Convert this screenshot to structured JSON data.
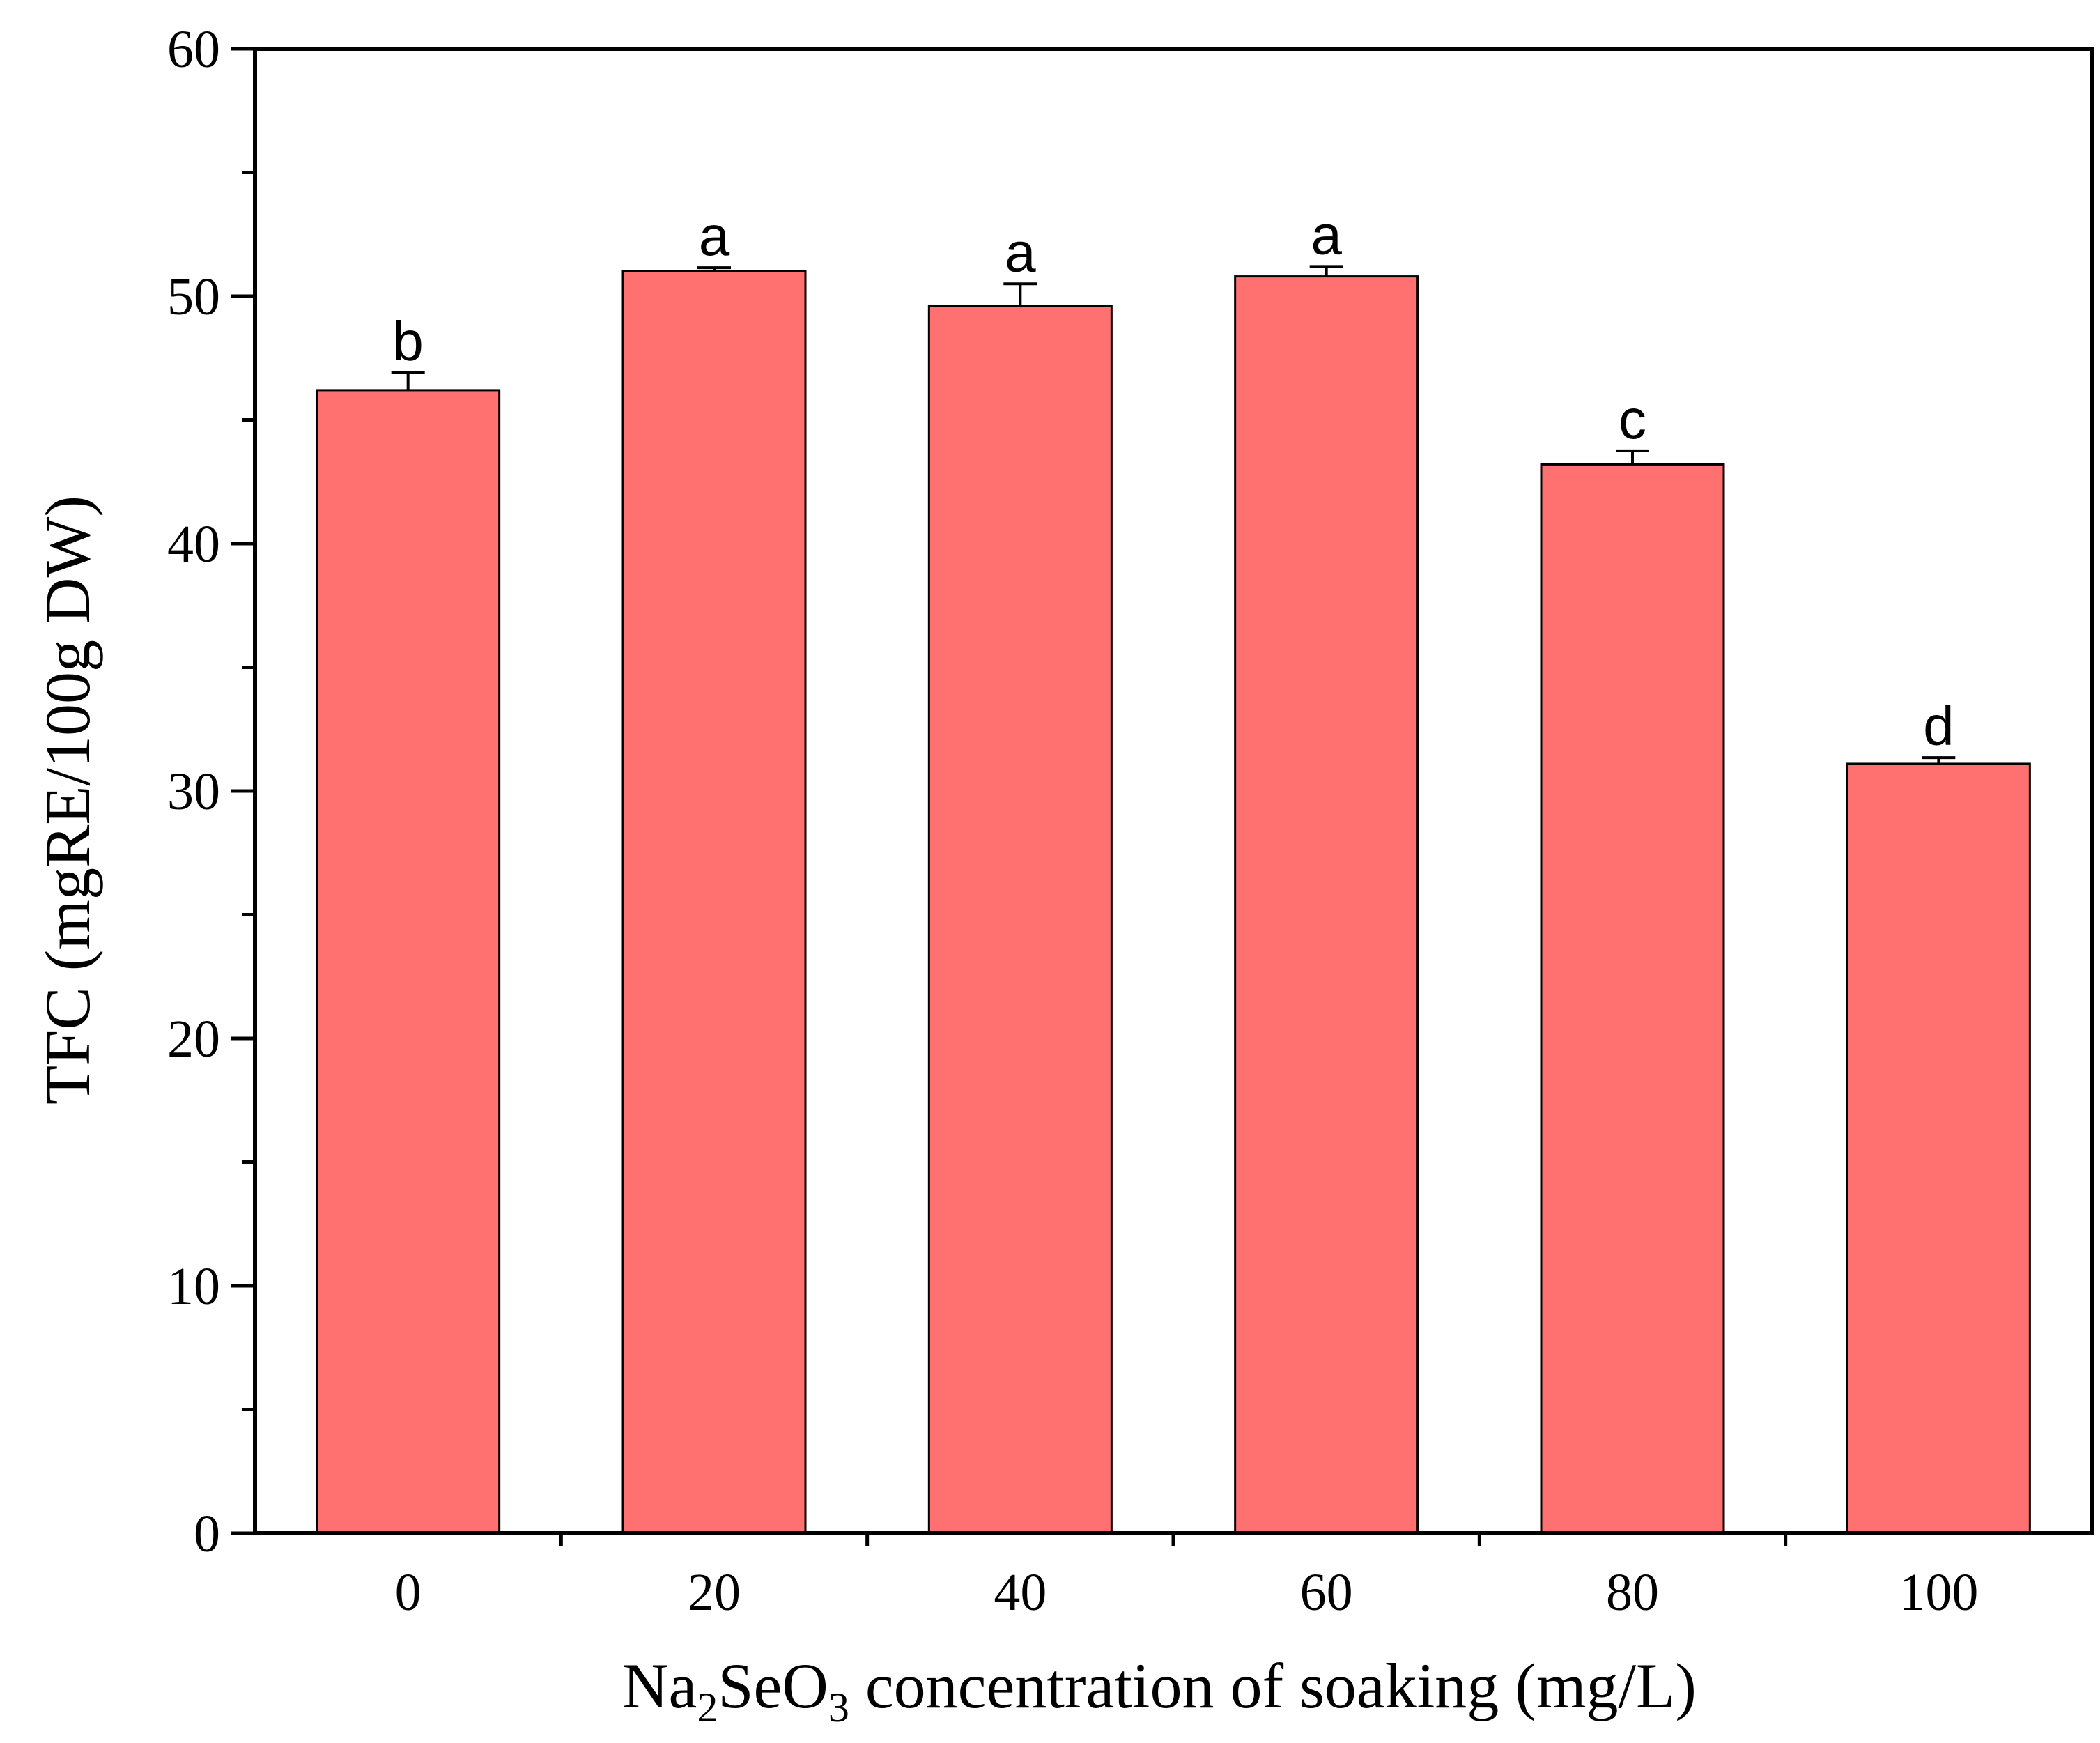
{
  "chart_data": {
    "type": "bar",
    "categories": [
      "0",
      "20",
      "40",
      "60",
      "80",
      "100"
    ],
    "values": [
      46.2,
      51.0,
      49.6,
      50.8,
      43.2,
      31.1
    ],
    "errors": [
      0.7,
      0.15,
      0.9,
      0.4,
      0.55,
      0.25
    ],
    "significance": [
      "b",
      "a",
      "a",
      "a",
      "c",
      "d"
    ],
    "xlabel_parts": {
      "pre": "Na",
      "sub1": "2",
      "mid": "SeO",
      "sub2": "3",
      "post": " concentration of soaking (mg/L)"
    },
    "ylabel": "TFC (mgRE/100g DW)",
    "ylim": [
      0,
      60
    ],
    "yticks": [
      "0",
      "10",
      "20",
      "30",
      "40",
      "50",
      "60"
    ],
    "bar_color": "#FF7070",
    "grid": false
  }
}
